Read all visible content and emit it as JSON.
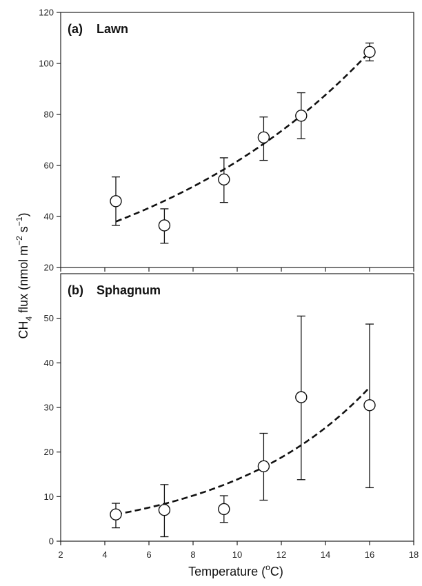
{
  "chart_data": [
    {
      "type": "scatter",
      "panel_label": "(a)",
      "panel_name": "Lawn",
      "xlim": [
        2,
        18
      ],
      "ylim": [
        20,
        120
      ],
      "x_ticks": [
        2,
        4,
        6,
        8,
        10,
        12,
        14,
        16,
        18
      ],
      "y_ticks": [
        20,
        40,
        60,
        80,
        100,
        120
      ],
      "x_tick_labels_shown": false,
      "points": [
        {
          "x": 4.5,
          "y": 46,
          "err_low": 36.5,
          "err_high": 55.5
        },
        {
          "x": 6.7,
          "y": 36.5,
          "err_low": 29.5,
          "err_high": 43
        },
        {
          "x": 9.4,
          "y": 54.5,
          "err_low": 45.5,
          "err_high": 63
        },
        {
          "x": 11.2,
          "y": 71,
          "err_low": 62,
          "err_high": 79
        },
        {
          "x": 12.9,
          "y": 79.5,
          "err_low": 70.5,
          "err_high": 88.5
        },
        {
          "x": 16,
          "y": 104.5,
          "err_low": 101,
          "err_high": 108
        }
      ],
      "fit": {
        "style": "dashed",
        "model": "exponential",
        "x_range": [
          4.5,
          16
        ],
        "y_start": 38,
        "y_end": 104.5
      }
    },
    {
      "type": "scatter",
      "panel_label": "(b)",
      "panel_name": "Sphagnum",
      "xlim": [
        2,
        18
      ],
      "ylim": [
        0,
        60
      ],
      "x_ticks": [
        2,
        4,
        6,
        8,
        10,
        12,
        14,
        16,
        18
      ],
      "y_ticks": [
        0,
        10,
        20,
        30,
        40,
        50
      ],
      "x_tick_labels_shown": true,
      "points": [
        {
          "x": 4.5,
          "y": 6,
          "err_low": 3,
          "err_high": 8.5
        },
        {
          "x": 6.7,
          "y": 7,
          "err_low": 1,
          "err_high": 12.7
        },
        {
          "x": 9.4,
          "y": 7.2,
          "err_low": 4.2,
          "err_high": 10.2
        },
        {
          "x": 11.2,
          "y": 16.8,
          "err_low": 9.2,
          "err_high": 24.2
        },
        {
          "x": 12.9,
          "y": 32.3,
          "err_low": 13.8,
          "err_high": 50.5
        },
        {
          "x": 16,
          "y": 30.5,
          "err_low": 12,
          "err_high": 48.7
        }
      ],
      "fit": {
        "style": "dashed",
        "model": "exponential",
        "x_range": [
          4.5,
          16
        ],
        "y_start": 6,
        "y_end": 34.5
      }
    }
  ],
  "labels": {
    "xlabel_main": "Temperature (",
    "xlabel_sup": "o",
    "xlabel_unit": "C)",
    "ylabel_ch": "CH",
    "ylabel_sub": "4",
    "ylabel_mid": " flux (nmol m",
    "ylabel_sup1": "−2",
    "ylabel_s": " s",
    "ylabel_sup2": "−1",
    "ylabel_end": ")"
  }
}
